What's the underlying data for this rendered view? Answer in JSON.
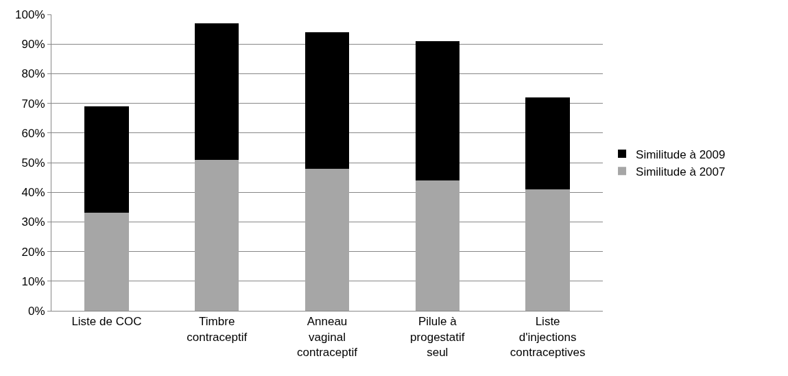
{
  "chart_data": {
    "type": "bar",
    "stacked": true,
    "categories": [
      "Liste de COC",
      "Timbre\ncontraceptif",
      "Anneau\nvaginal\ncontraceptif",
      "Pilule à\nprogestatif\nseul",
      "Liste\nd'injections\ncontraceptives"
    ],
    "series": [
      {
        "name": "Similitude à 2007",
        "color": "#a6a6a6",
        "values": [
          33,
          51,
          48,
          44,
          41
        ]
      },
      {
        "name": "Similitude à 2009",
        "color": "#000000",
        "values": [
          36,
          46,
          46,
          47,
          31
        ]
      }
    ],
    "ylim": [
      0,
      100
    ],
    "yticks": [
      {
        "value": 0,
        "label": "0%"
      },
      {
        "value": 10,
        "label": "10%"
      },
      {
        "value": 20,
        "label": "20%"
      },
      {
        "value": 30,
        "label": "30%"
      },
      {
        "value": 40,
        "label": "40%"
      },
      {
        "value": 50,
        "label": "50%"
      },
      {
        "value": 60,
        "label": "60%"
      },
      {
        "value": 70,
        "label": "70%"
      },
      {
        "value": 80,
        "label": "80%"
      },
      {
        "value": 90,
        "label": "90%"
      },
      {
        "value": 100,
        "label": "100%"
      }
    ],
    "grid": "y",
    "legend": "right"
  }
}
